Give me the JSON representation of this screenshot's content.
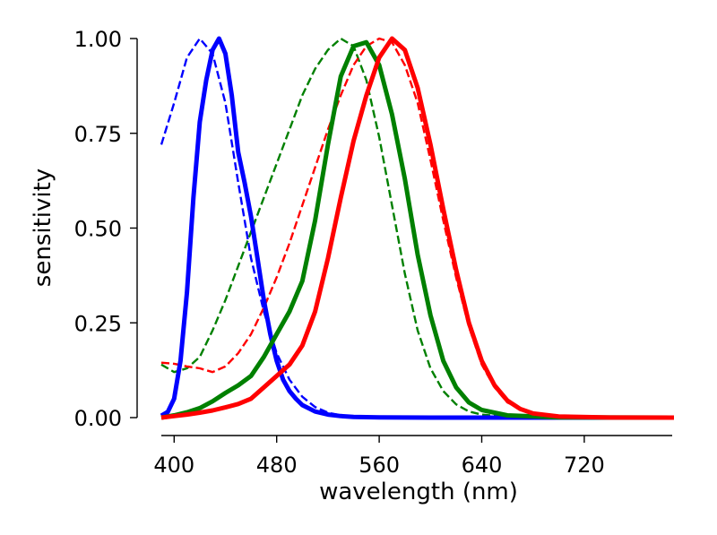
{
  "chart_data": {
    "type": "line",
    "xlabel": "wavelength (nm)",
    "ylabel": "sensitivity",
    "xlim": [
      390,
      790
    ],
    "ylim": [
      0,
      1
    ],
    "xticks": [
      "400",
      "480",
      "560",
      "640",
      "720"
    ],
    "yticks": [
      "0.00",
      "0.25",
      "0.50",
      "0.75",
      "1.00"
    ],
    "grid": false,
    "legend": "none",
    "series": [
      {
        "color": "#0000ff",
        "style": "solid",
        "x": [
          390,
          395,
          400,
          405,
          410,
          415,
          420,
          425,
          430,
          435,
          440,
          445,
          450,
          455,
          460,
          465,
          470,
          475,
          480,
          485,
          490,
          495,
          500,
          510,
          520,
          530,
          540,
          560,
          600,
          790
        ],
        "y": [
          0.005,
          0.015,
          0.05,
          0.15,
          0.33,
          0.58,
          0.78,
          0.89,
          0.97,
          1.0,
          0.96,
          0.85,
          0.7,
          0.62,
          0.53,
          0.42,
          0.31,
          0.22,
          0.15,
          0.1,
          0.07,
          0.05,
          0.033,
          0.016,
          0.008,
          0.004,
          0.002,
          0.0006,
          0.0001,
          0.0
        ]
      },
      {
        "color": "#008000",
        "style": "solid",
        "x": [
          390,
          400,
          410,
          420,
          430,
          440,
          450,
          460,
          470,
          480,
          490,
          500,
          510,
          520,
          530,
          540,
          550,
          560,
          570,
          580,
          590,
          600,
          610,
          620,
          630,
          640,
          660,
          700,
          790
        ],
        "y": [
          0.0,
          0.006,
          0.014,
          0.025,
          0.043,
          0.065,
          0.085,
          0.11,
          0.16,
          0.22,
          0.28,
          0.36,
          0.52,
          0.72,
          0.9,
          0.98,
          0.99,
          0.93,
          0.8,
          0.63,
          0.43,
          0.27,
          0.15,
          0.08,
          0.04,
          0.02,
          0.006,
          0.0006,
          0.0
        ]
      },
      {
        "color": "#ff0000",
        "style": "solid",
        "x": [
          390,
          400,
          410,
          420,
          430,
          440,
          450,
          460,
          470,
          480,
          490,
          500,
          510,
          520,
          530,
          540,
          550,
          560,
          570,
          580,
          590,
          600,
          610,
          620,
          630,
          640,
          650,
          660,
          670,
          680,
          700,
          740,
          790
        ],
        "y": [
          0.0,
          0.004,
          0.008,
          0.013,
          0.019,
          0.027,
          0.036,
          0.05,
          0.08,
          0.11,
          0.14,
          0.19,
          0.28,
          0.42,
          0.58,
          0.73,
          0.85,
          0.95,
          1.0,
          0.97,
          0.87,
          0.72,
          0.55,
          0.39,
          0.25,
          0.15,
          0.085,
          0.045,
          0.023,
          0.011,
          0.003,
          0.0003,
          0.0
        ]
      },
      {
        "color": "#0000ff",
        "style": "dashed",
        "x": [
          390,
          400,
          410,
          420,
          430,
          440,
          450,
          460,
          470,
          480,
          490,
          500,
          510,
          520,
          530,
          540,
          550,
          560
        ],
        "y": [
          0.72,
          0.83,
          0.95,
          1.0,
          0.96,
          0.83,
          0.62,
          0.42,
          0.28,
          0.17,
          0.1,
          0.055,
          0.028,
          0.013,
          0.006,
          0.003,
          0.001,
          0.0
        ]
      },
      {
        "color": "#008000",
        "style": "dashed",
        "x": [
          390,
          400,
          410,
          420,
          430,
          440,
          450,
          460,
          470,
          480,
          490,
          500,
          510,
          520,
          530,
          540,
          550,
          560,
          570,
          580,
          590,
          600,
          610,
          620,
          630,
          640,
          660,
          700
        ],
        "y": [
          0.14,
          0.12,
          0.13,
          0.16,
          0.23,
          0.31,
          0.4,
          0.49,
          0.58,
          0.67,
          0.76,
          0.85,
          0.92,
          0.97,
          1.0,
          0.98,
          0.89,
          0.74,
          0.56,
          0.38,
          0.23,
          0.13,
          0.07,
          0.035,
          0.016,
          0.008,
          0.002,
          0.0
        ]
      },
      {
        "color": "#ff0000",
        "style": "dashed",
        "x": [
          390,
          400,
          410,
          420,
          430,
          440,
          450,
          460,
          470,
          480,
          490,
          500,
          510,
          520,
          530,
          540,
          550,
          560,
          570,
          580,
          590,
          600,
          610,
          620,
          630,
          640,
          650,
          660,
          680,
          700,
          740
        ],
        "y": [
          0.145,
          0.142,
          0.135,
          0.13,
          0.12,
          0.135,
          0.17,
          0.22,
          0.29,
          0.37,
          0.46,
          0.56,
          0.66,
          0.76,
          0.85,
          0.93,
          0.98,
          1.0,
          0.99,
          0.93,
          0.83,
          0.68,
          0.52,
          0.37,
          0.24,
          0.14,
          0.08,
          0.04,
          0.01,
          0.002,
          0.0
        ]
      }
    ]
  }
}
